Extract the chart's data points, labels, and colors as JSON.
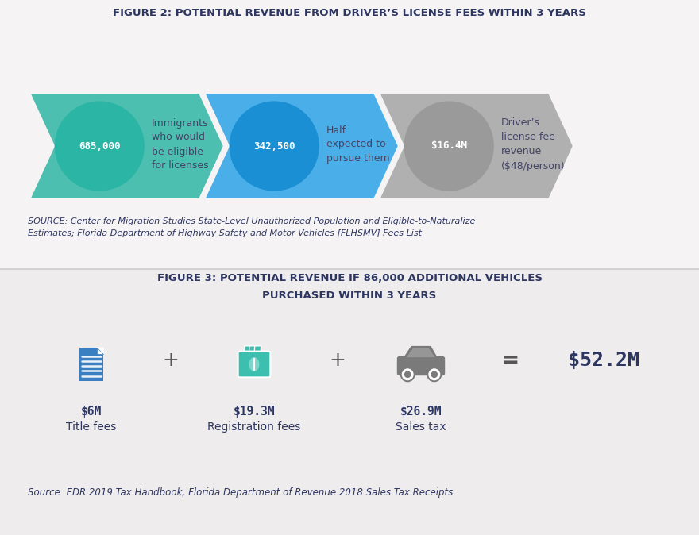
{
  "fig2_title": "FIGURE 2: POTENTIAL REVENUE FROM DRIVER’S LICENSE FEES WITHIN 3 YEARS",
  "fig3_title_line1": "FIGURE 3: POTENTIAL REVENUE IF 86,000 ADDITIONAL VEHICLES",
  "fig3_title_line2": "PURCHASED WITHIN 3 YEARS",
  "background_color": "#f5f3f3",
  "upper_bg": "#f5f3f3",
  "lower_bg": "#eeecec",
  "divider_color": "#cccccc",
  "arrow1_color": "#4dbfb0",
  "arrow2_color": "#4aafe8",
  "arrow3_color": "#b0b0b0",
  "circle1_color": "#2ab5a5",
  "circle2_color": "#1a8fd4",
  "circle3_color": "#9a9a9a",
  "circle_text_color": "#ffffff",
  "fig2_labels": [
    "685,000",
    "342,500",
    "$16.4M"
  ],
  "fig2_descriptions": [
    "Immigrants\nwho would\nbe eligible\nfor licenses",
    "Half\nexpected to\npursue them",
    "Driver’s\nlicense fee\nrevenue\n($48/person)"
  ],
  "fig3_amounts": [
    "$6M",
    "$19.3M",
    "$26.9M"
  ],
  "fig3_labels": [
    "Title fees",
    "Registration fees",
    "Sales tax"
  ],
  "fig3_total": "$52.2M",
  "source1": "SOURCE: Center for Migration Studies State-Level Unauthorized Population and Eligible-to-Naturalize\nEstimates; Florida Department of Highway Safety and Motor Vehicles [FLHSMV] Fees List",
  "source2": "Source: EDR 2019 Tax Handbook; Florida Department of Revenue 2018 Sales Tax Receipts",
  "title_color": "#2d3561",
  "label_color": "#2d3561",
  "desc_color": "#444466",
  "source_color": "#2d3561",
  "amount_color": "#2d3561",
  "total_color": "#2d3561",
  "icon_blue": "#3a7fc1",
  "icon_teal": "#3dbfb0",
  "icon_gray": "#7a7a7a",
  "plus_color": "#555555",
  "eq_color": "#555555"
}
